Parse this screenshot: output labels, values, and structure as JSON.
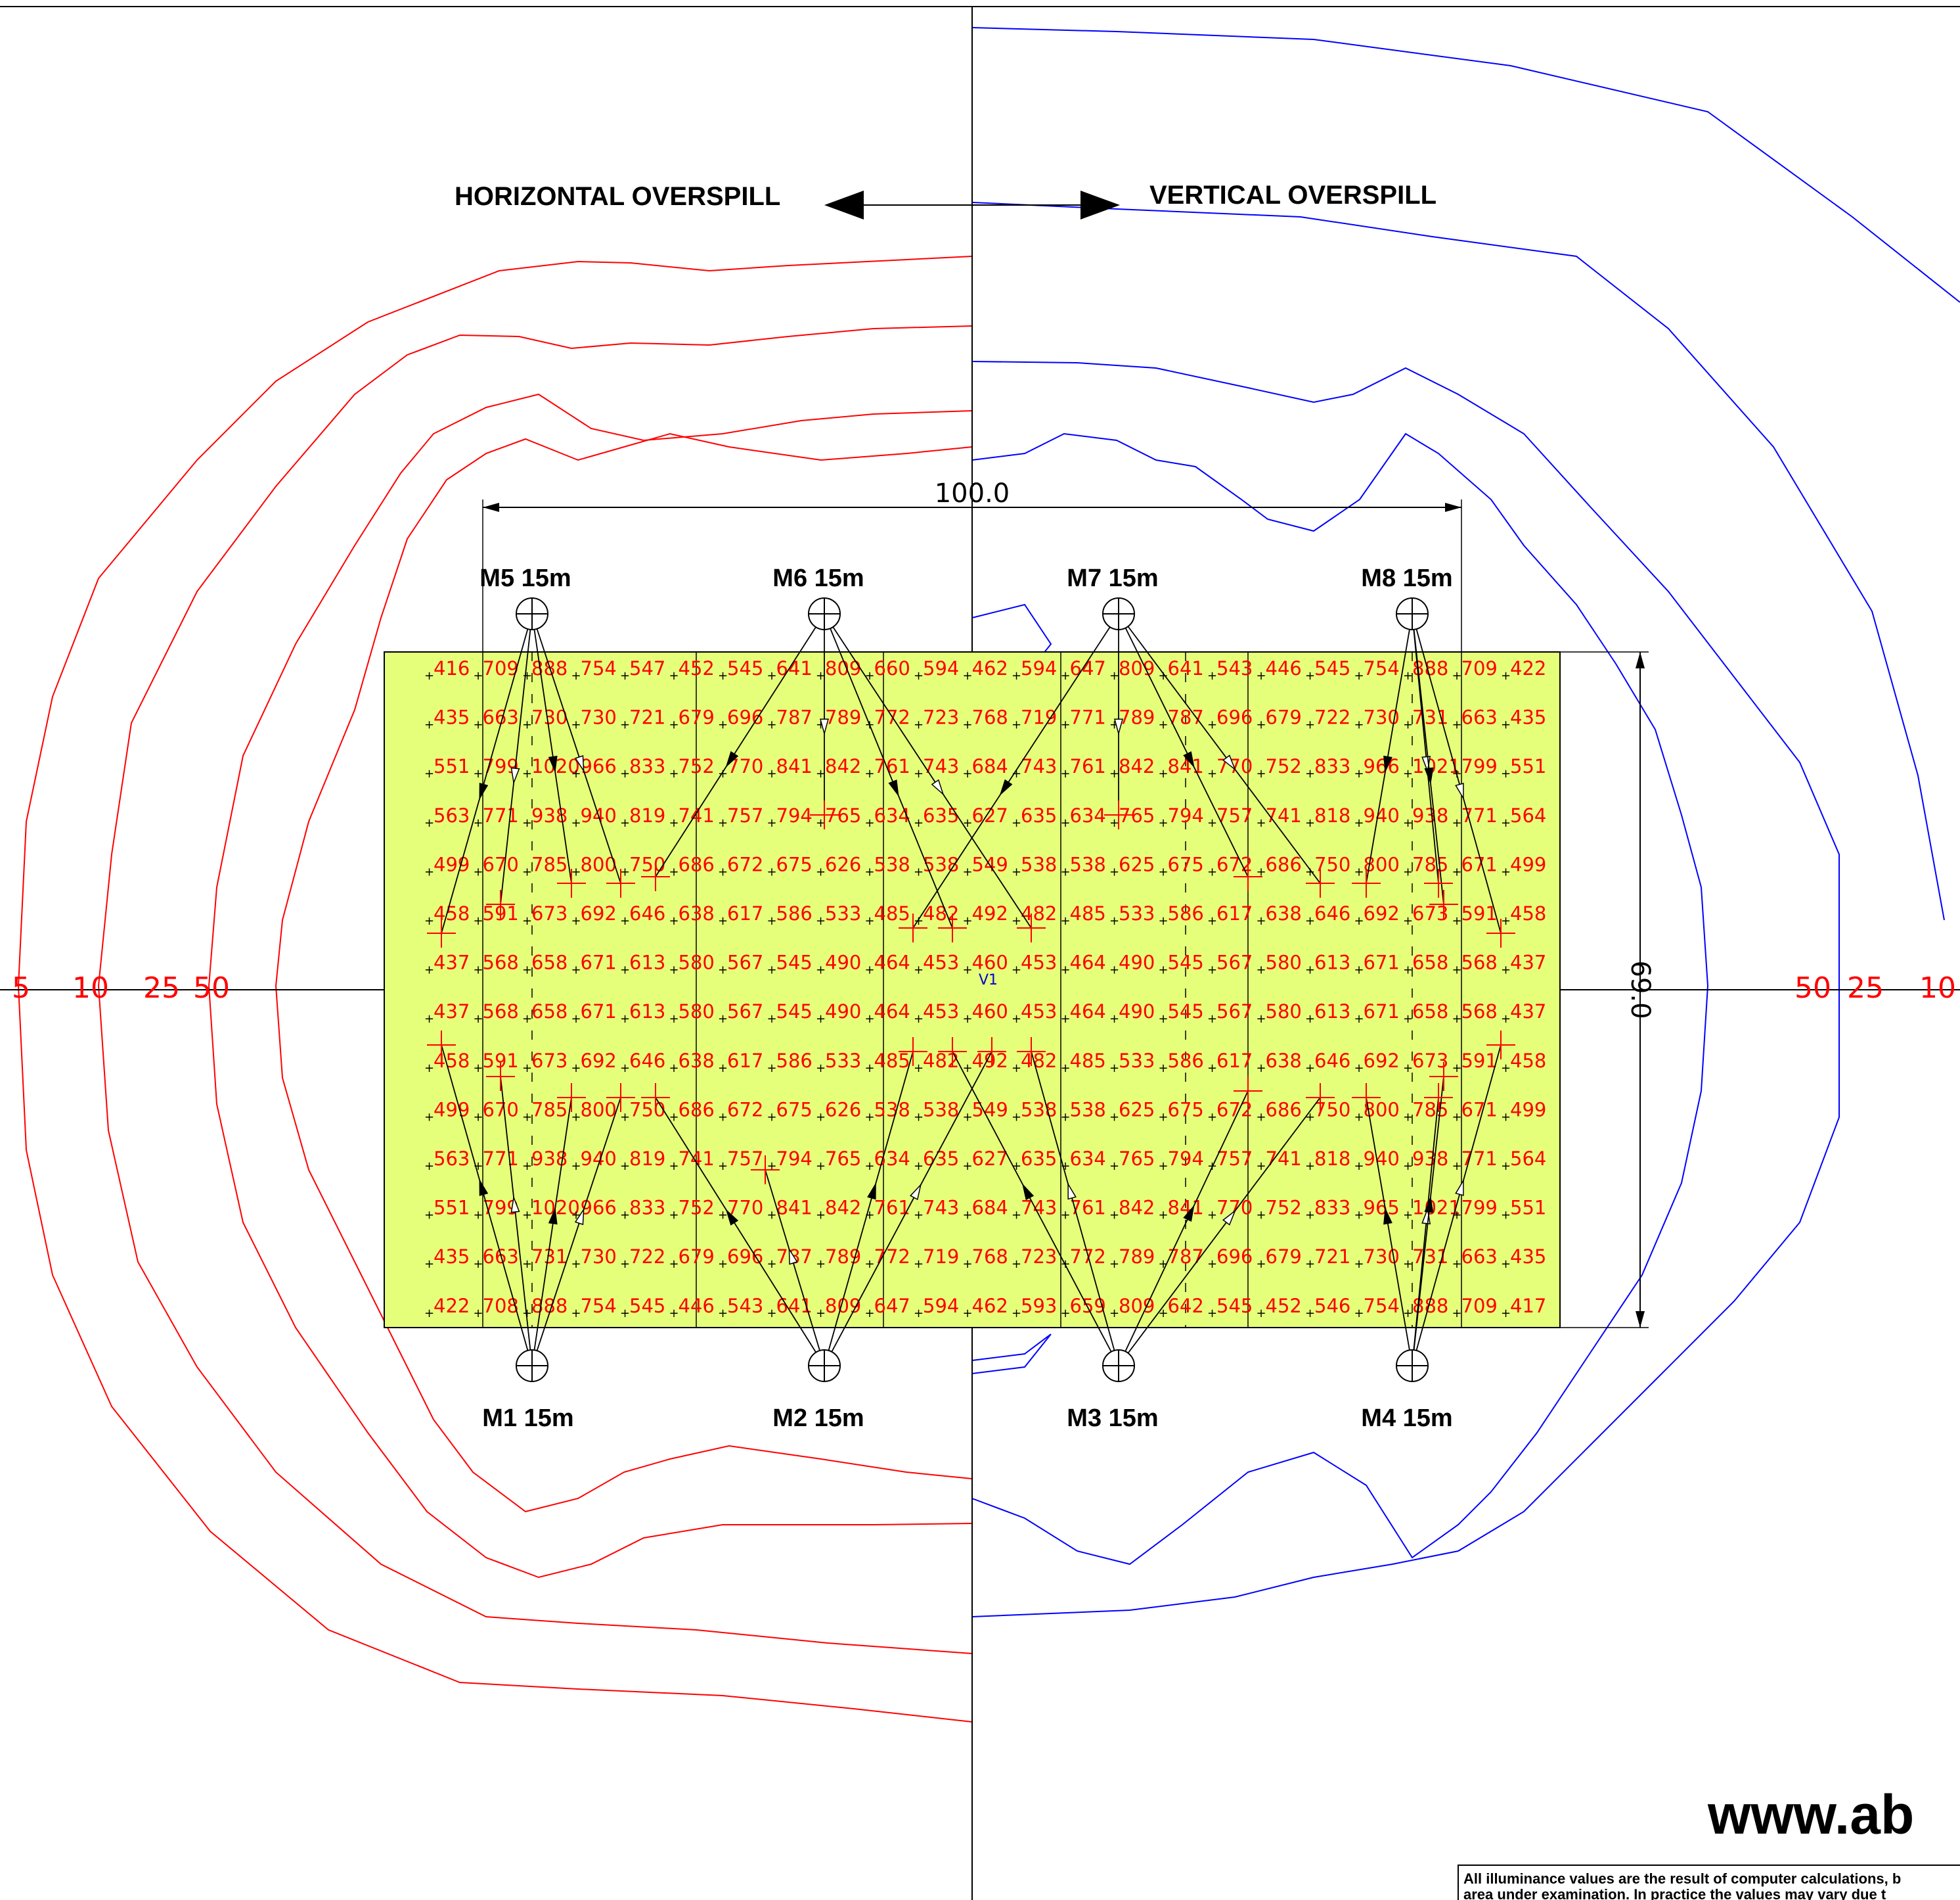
{
  "headings": {
    "horizontal": "HORIZONTAL OVERSPILL",
    "vertical": "VERTICAL OVERSPILL"
  },
  "dimensions": {
    "length": "100.0",
    "width": "69.0"
  },
  "masts": [
    "M1 15m",
    "M2 15m",
    "M3 15m",
    "M4 15m",
    "M5 15m",
    "M6 15m",
    "M7 15m",
    "M8 15m"
  ],
  "center_marker": "V1",
  "horizontal_contour_labels": [
    "5",
    "10",
    "25",
    "50"
  ],
  "vertical_contour_labels": [
    "50",
    "25",
    "10"
  ],
  "grid_values": [
    [
      "416",
      "709",
      "888",
      "754",
      "547",
      "452",
      "545",
      "641",
      "809",
      "660",
      "594",
      "462",
      "594",
      "647",
      "809",
      "641",
      "543",
      "446",
      "545",
      "754",
      "888",
      "709",
      "422"
    ],
    [
      "435",
      "663",
      "730",
      "730",
      "721",
      "679",
      "696",
      "787",
      "789",
      "772",
      "723",
      "768",
      "719",
      "771",
      "789",
      "787",
      "696",
      "679",
      "722",
      "730",
      "731",
      "663",
      "435"
    ],
    [
      "551",
      "799",
      "1020",
      "966",
      "833",
      "752",
      "770",
      "841",
      "842",
      "761",
      "743",
      "684",
      "743",
      "761",
      "842",
      "841",
      "770",
      "752",
      "833",
      "966",
      "1021",
      "799",
      "551"
    ],
    [
      "563",
      "771",
      "938",
      "940",
      "819",
      "741",
      "757",
      "794",
      "765",
      "634",
      "635",
      "627",
      "635",
      "634",
      "765",
      "794",
      "757",
      "741",
      "818",
      "940",
      "938",
      "771",
      "564"
    ],
    [
      "499",
      "670",
      "785",
      "800",
      "750",
      "686",
      "672",
      "675",
      "626",
      "538",
      "538",
      "549",
      "538",
      "538",
      "625",
      "675",
      "672",
      "686",
      "750",
      "800",
      "785",
      "671",
      "499"
    ],
    [
      "458",
      "591",
      "673",
      "692",
      "646",
      "638",
      "617",
      "586",
      "533",
      "485",
      "482",
      "492",
      "482",
      "485",
      "533",
      "586",
      "617",
      "638",
      "646",
      "692",
      "673",
      "591",
      "458"
    ],
    [
      "437",
      "568",
      "658",
      "671",
      "613",
      "580",
      "567",
      "545",
      "490",
      "464",
      "453",
      "460",
      "453",
      "464",
      "490",
      "545",
      "567",
      "580",
      "613",
      "671",
      "658",
      "568",
      "437"
    ],
    [
      "437",
      "568",
      "658",
      "671",
      "613",
      "580",
      "567",
      "545",
      "490",
      "464",
      "453",
      "460",
      "453",
      "464",
      "490",
      "545",
      "567",
      "580",
      "613",
      "671",
      "658",
      "568",
      "437"
    ],
    [
      "458",
      "591",
      "673",
      "692",
      "646",
      "638",
      "617",
      "586",
      "533",
      "485",
      "482",
      "492",
      "482",
      "485",
      "533",
      "586",
      "617",
      "638",
      "646",
      "692",
      "673",
      "591",
      "458"
    ],
    [
      "499",
      "670",
      "785",
      "800",
      "750",
      "686",
      "672",
      "675",
      "626",
      "538",
      "538",
      "549",
      "538",
      "538",
      "625",
      "675",
      "672",
      "686",
      "750",
      "800",
      "785",
      "671",
      "499"
    ],
    [
      "563",
      "771",
      "938",
      "940",
      "819",
      "741",
      "757",
      "794",
      "765",
      "634",
      "635",
      "627",
      "635",
      "634",
      "765",
      "794",
      "757",
      "741",
      "818",
      "940",
      "938",
      "771",
      "564"
    ],
    [
      "551",
      "799",
      "1020",
      "966",
      "833",
      "752",
      "770",
      "841",
      "842",
      "761",
      "743",
      "684",
      "743",
      "761",
      "842",
      "841",
      "770",
      "752",
      "833",
      "965",
      "1021",
      "799",
      "551"
    ],
    [
      "435",
      "663",
      "731",
      "730",
      "722",
      "679",
      "696",
      "787",
      "789",
      "772",
      "719",
      "768",
      "723",
      "772",
      "789",
      "787",
      "696",
      "679",
      "721",
      "730",
      "731",
      "663",
      "435"
    ],
    [
      "422",
      "708",
      "888",
      "754",
      "545",
      "446",
      "543",
      "641",
      "809",
      "647",
      "594",
      "462",
      "593",
      "659",
      "809",
      "642",
      "545",
      "452",
      "546",
      "754",
      "888",
      "709",
      "417"
    ]
  ],
  "first_value_color": "#22bb22",
  "value_color": "#ff0000",
  "horizontal_contour_color": "#ff0000",
  "vertical_contour_color": "#0000ff",
  "field_color": "#e6ff7a",
  "site_text": "www.ab",
  "disclaimer_lines": [
    "All illuminance values are the result of computer calculations, b",
    "area under examination. In practice the values may vary due t"
  ]
}
